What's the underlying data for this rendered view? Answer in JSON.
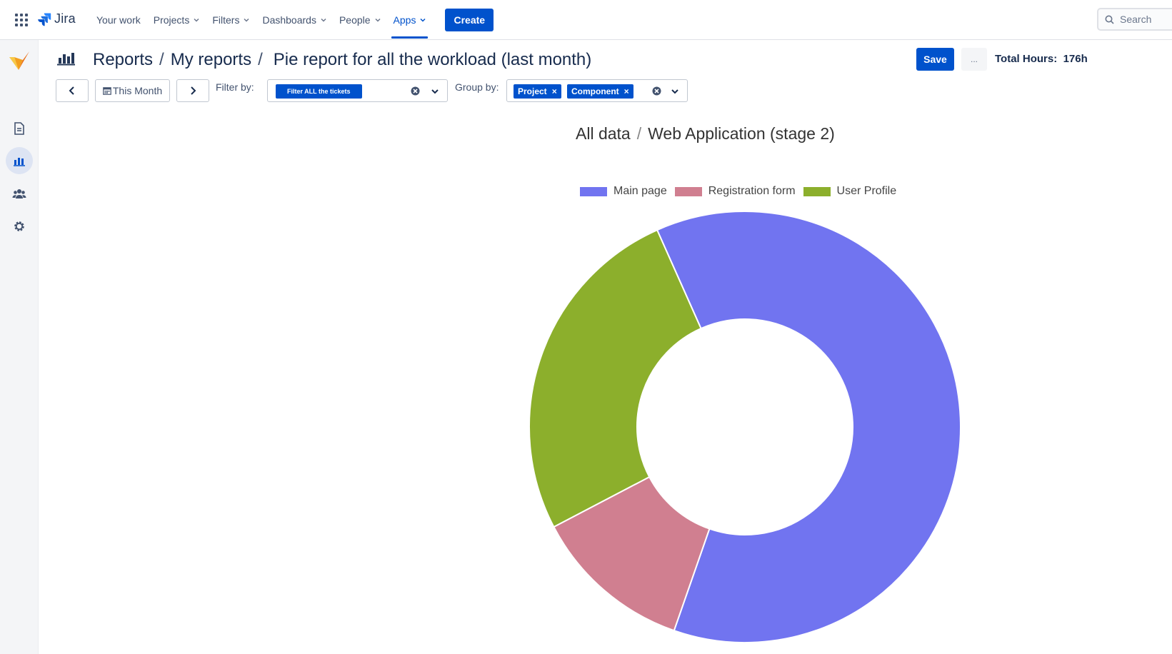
{
  "topnav": {
    "logo_text": "Jira",
    "items": [
      {
        "label": "Your work",
        "has_chevron": false,
        "active": false
      },
      {
        "label": "Projects",
        "has_chevron": true,
        "active": false
      },
      {
        "label": "Filters",
        "has_chevron": true,
        "active": false
      },
      {
        "label": "Dashboards",
        "has_chevron": true,
        "active": false
      },
      {
        "label": "People",
        "has_chevron": true,
        "active": false
      },
      {
        "label": "Apps",
        "has_chevron": true,
        "active": true
      }
    ],
    "create_label": "Create",
    "search_placeholder": "Search"
  },
  "sidebar": {
    "items": [
      {
        "icon": "document-icon",
        "active": false
      },
      {
        "icon": "bar-chart-icon",
        "active": true
      },
      {
        "icon": "people-icon",
        "active": false
      },
      {
        "icon": "gear-icon",
        "active": false
      }
    ]
  },
  "header": {
    "breadcrumbs": [
      "Reports",
      "My reports"
    ],
    "title": "Pie report for all the workload (last month)",
    "save_label": "Save",
    "more_label": "...",
    "total_hours_label": "Total Hours:",
    "total_hours_value": "176h"
  },
  "toolbar": {
    "period_label": "This Month",
    "filter_label": "Filter by:",
    "filter_chip": "Filter ALL the tickets",
    "group_label": "Group by:",
    "group_chips": [
      "Project",
      "Component"
    ]
  },
  "chart_data": {
    "type": "pie",
    "variant": "doughnut",
    "breadcrumb": [
      "All data",
      "Web Application (stage 2)"
    ],
    "categories": [
      "Main page",
      "Registration form",
      "User Profile"
    ],
    "values": [
      62,
      12,
      26
    ],
    "colors": [
      "#7174f0",
      "#d07f90",
      "#8caf2c"
    ],
    "legend_position": "top"
  },
  "colors": {
    "accent": "#0052cc",
    "sidebar_bg": "#f4f5f7"
  }
}
